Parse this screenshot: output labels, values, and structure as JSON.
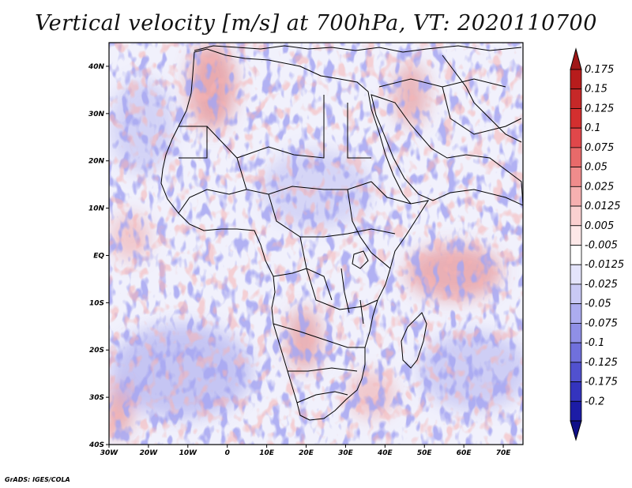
{
  "title": "Vertical velocity [m/s] at 700hPa, VT: 2020110700",
  "footer": "GrADS: IGES/COLA",
  "map": {
    "projection": "lat-lon",
    "lon_range": [
      -30,
      75
    ],
    "lat_range": [
      -40,
      45
    ],
    "lat_ticks": [
      {
        "value": 40,
        "label": "40N"
      },
      {
        "value": 30,
        "label": "30N"
      },
      {
        "value": 20,
        "label": "20N"
      },
      {
        "value": 10,
        "label": "10N"
      },
      {
        "value": 0,
        "label": "EQ"
      },
      {
        "value": -10,
        "label": "10S"
      },
      {
        "value": -20,
        "label": "20S"
      },
      {
        "value": -30,
        "label": "30S"
      },
      {
        "value": -40,
        "label": "40S"
      }
    ],
    "lon_ticks": [
      {
        "value": -30,
        "label": "30W"
      },
      {
        "value": -20,
        "label": "20W"
      },
      {
        "value": -10,
        "label": "10W"
      },
      {
        "value": 0,
        "label": "0"
      },
      {
        "value": 10,
        "label": "10E"
      },
      {
        "value": 20,
        "label": "20E"
      },
      {
        "value": 30,
        "label": "30E"
      },
      {
        "value": 40,
        "label": "40E"
      },
      {
        "value": 50,
        "label": "50E"
      },
      {
        "value": 60,
        "label": "60E"
      },
      {
        "value": 70,
        "label": "70E"
      }
    ]
  },
  "colorbar": {
    "levels": [
      {
        "label": "0.175",
        "color": "#b71c1c"
      },
      {
        "label": "0.15",
        "color": "#c62828"
      },
      {
        "label": "0.125",
        "color": "#d32f2f"
      },
      {
        "label": "0.1",
        "color": "#e0474a"
      },
      {
        "label": "0.075",
        "color": "#e86a6a"
      },
      {
        "label": "0.05",
        "color": "#f08c8c"
      },
      {
        "label": "0.025",
        "color": "#f6b0b0"
      },
      {
        "label": "0.0125",
        "color": "#fad0d0"
      },
      {
        "label": "0.005",
        "color": "#fde8e8"
      },
      {
        "label": "-0.005",
        "color": "#ffffff"
      },
      {
        "label": "-0.0125",
        "color": "#e4e4fb"
      },
      {
        "label": "-0.025",
        "color": "#c9c9f5"
      },
      {
        "label": "-0.05",
        "color": "#acacef"
      },
      {
        "label": "-0.075",
        "color": "#8f8fe6"
      },
      {
        "label": "-0.1",
        "color": "#7070dc"
      },
      {
        "label": "-0.125",
        "color": "#5151cf"
      },
      {
        "label": "-0.175",
        "color": "#3434be"
      },
      {
        "label": "-0.2",
        "color": "#1c1ca6"
      }
    ],
    "top_arrow_color": "#a01818",
    "bottom_arrow_color": "#101088"
  },
  "palette": {
    "neutral": "#f1f1fc",
    "ascent": "#e06060",
    "descent": "#6a6ae0",
    "coastline": "#000000"
  }
}
